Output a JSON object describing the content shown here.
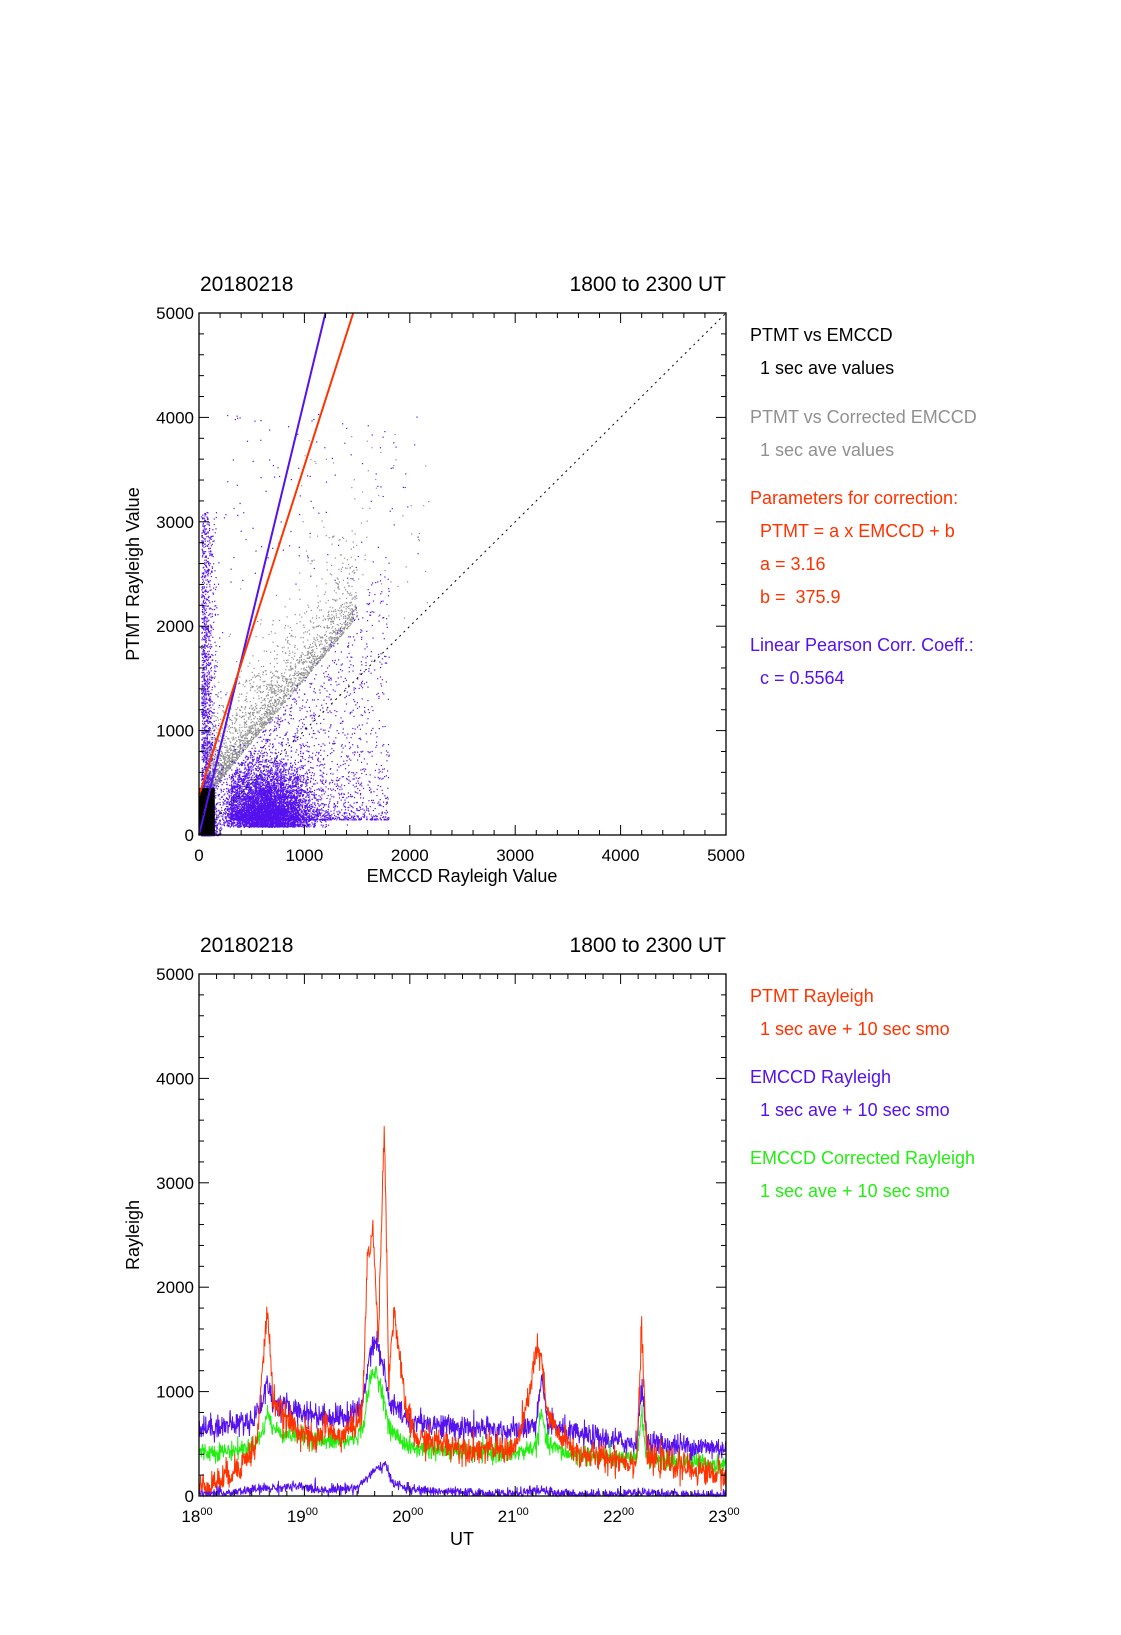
{
  "chart_data": [
    {
      "type": "scatter",
      "date": "20180218",
      "time_range": "1800 to 2300 UT",
      "xlabel": "EMCCD Rayleigh Value",
      "ylabel": "PTMT Rayleigh Value",
      "xlim": [
        0,
        5000
      ],
      "ylim": [
        0,
        5000
      ],
      "xticks": [
        "0",
        "1000",
        "2000",
        "3000",
        "4000",
        "5000"
      ],
      "yticks": [
        "0",
        "1000",
        "2000",
        "3000",
        "4000",
        "5000"
      ],
      "grid": false,
      "legend_position": "right",
      "legend": [
        {
          "title": "PTMT vs EMCCD",
          "subtitle": "1 sec ave values",
          "color": "#000000"
        },
        {
          "title": "PTMT vs Corrected EMCCD",
          "subtitle": "1 sec ave values",
          "color": "#909090"
        }
      ],
      "correction": {
        "heading": "Parameters for correction:",
        "formula": "PTMT = a x EMCCD + b",
        "a_text": "a = 3.16",
        "b_text": "b =  375.9",
        "a": 3.16,
        "b": 375.9,
        "color": "#ff3300"
      },
      "pearson": {
        "heading": "Linear Pearson Corr. Coeff.:",
        "c_text": "c = 0.5564",
        "c": 0.5564,
        "color": "#5511ee"
      },
      "lines": [
        {
          "kind": "fit",
          "color": "#5511ee",
          "x": [
            0,
            1200
          ],
          "y": [
            0,
            5000
          ]
        },
        {
          "kind": "correction",
          "color": "#ff3300",
          "x": [
            0,
            1463
          ],
          "y": [
            375.9,
            5000
          ]
        },
        {
          "kind": "one-to-one",
          "color": "#000000",
          "x": [
            0,
            5000
          ],
          "y": [
            0,
            5000
          ],
          "style": "dotted"
        }
      ],
      "clusters": {
        "emccd_main": {
          "x_range": [
            100,
            1300
          ],
          "y_range": [
            80,
            900
          ],
          "color": "#5511ee"
        },
        "emccd_spread": {
          "x_range": [
            300,
            1800
          ],
          "y_range": [
            150,
            2400
          ],
          "color": "#5511ee"
        },
        "ptmt_column": {
          "x_range": [
            0,
            200
          ],
          "y_range": [
            0,
            3100
          ],
          "color": "#5511ee"
        },
        "corrected": {
          "x_range": [
            50,
            1500
          ],
          "y_range": [
            200,
            3000
          ],
          "color": "#909090"
        },
        "black_block": {
          "x_range": [
            0,
            150
          ],
          "y_range": [
            0,
            450
          ],
          "color": "#000000"
        }
      }
    },
    {
      "type": "line",
      "date": "20180218",
      "time_range": "1800 to 2300 UT",
      "xlabel": "UT",
      "ylabel": "Rayleigh",
      "xlim": [
        18,
        23
      ],
      "ylim": [
        0,
        5000
      ],
      "xticks": [
        {
          "hh": "18",
          "mm": "00"
        },
        {
          "hh": "19",
          "mm": "00"
        },
        {
          "hh": "20",
          "mm": "00"
        },
        {
          "hh": "21",
          "mm": "00"
        },
        {
          "hh": "22",
          "mm": "00"
        },
        {
          "hh": "23",
          "mm": "00"
        }
      ],
      "yticks": [
        "0",
        "1000",
        "2000",
        "3000",
        "4000",
        "5000"
      ],
      "grid": false,
      "legend_position": "right",
      "legend": [
        {
          "title": "PTMT Rayleigh",
          "subtitle": "1 sec ave + 10 sec smo",
          "color": "#ff3300"
        },
        {
          "title": "EMCCD Rayleigh",
          "subtitle": "1 sec ave + 10 sec smo",
          "color": "#5511ee"
        },
        {
          "title": "EMCCD Corrected Rayleigh",
          "subtitle": "1 sec ave + 10 sec smo",
          "color": "#22ee11"
        }
      ],
      "series": [
        {
          "color": "#5511ee",
          "x": [
            18.0,
            18.3,
            18.5,
            18.6,
            18.65,
            18.7,
            18.8,
            19.0,
            19.2,
            19.4,
            19.55,
            19.62,
            19.68,
            19.75,
            19.8,
            20.0,
            20.5,
            21.0,
            21.2,
            21.25,
            21.3,
            21.5,
            22.0,
            22.15,
            22.2,
            22.25,
            22.5,
            23.0
          ],
          "y": [
            650,
            680,
            720,
            900,
            1100,
            900,
            850,
            800,
            760,
            760,
            850,
            1400,
            1500,
            1250,
            900,
            720,
            650,
            620,
            700,
            1100,
            700,
            600,
            520,
            500,
            1050,
            520,
            480,
            460
          ],
          "noise": 60
        },
        {
          "color": "#22ee11",
          "x": [
            18.0,
            18.3,
            18.5,
            18.6,
            18.65,
            18.7,
            18.8,
            19.0,
            19.2,
            19.4,
            19.55,
            19.62,
            19.68,
            19.75,
            19.8,
            20.0,
            20.5,
            21.0,
            21.2,
            21.25,
            21.3,
            21.5,
            22.0,
            22.15,
            22.2,
            22.25,
            22.5,
            23.0
          ],
          "y": [
            420,
            430,
            470,
            600,
            800,
            650,
            600,
            560,
            520,
            520,
            620,
            1100,
            1200,
            950,
            650,
            460,
            420,
            400,
            480,
            800,
            500,
            400,
            360,
            340,
            800,
            350,
            330,
            300
          ],
          "noise": 45
        },
        {
          "color": "#ff3300",
          "x": [
            18.0,
            18.2,
            18.4,
            18.55,
            18.6,
            18.65,
            18.7,
            18.8,
            19.0,
            19.1,
            19.2,
            19.3,
            19.45,
            19.55,
            19.6,
            19.65,
            19.7,
            19.76,
            19.8,
            19.85,
            19.95,
            20.05,
            20.3,
            20.6,
            21.0,
            21.1,
            21.2,
            21.25,
            21.3,
            21.4,
            21.6,
            22.0,
            22.15,
            22.2,
            22.25,
            22.4,
            22.7,
            23.0
          ],
          "y": [
            80,
            150,
            300,
            500,
            1200,
            1800,
            950,
            750,
            600,
            500,
            700,
            550,
            650,
            800,
            2300,
            2550,
            1500,
            3600,
            1100,
            1800,
            900,
            550,
            500,
            450,
            450,
            800,
            1400,
            1300,
            800,
            600,
            400,
            350,
            320,
            1600,
            350,
            330,
            250,
            200
          ],
          "noise": 70
        },
        {
          "color": "#5511ee",
          "x": [
            18.0,
            18.3,
            18.6,
            18.9,
            19.2,
            19.5,
            19.62,
            19.68,
            19.76,
            19.85,
            20.0,
            20.5,
            21.0,
            21.2,
            21.5,
            22.0,
            22.2,
            22.5,
            23.0
          ],
          "y": [
            20,
            30,
            70,
            90,
            60,
            80,
            200,
            250,
            300,
            120,
            60,
            30,
            20,
            50,
            20,
            15,
            40,
            10,
            10
          ],
          "noise": 25
        }
      ]
    }
  ]
}
